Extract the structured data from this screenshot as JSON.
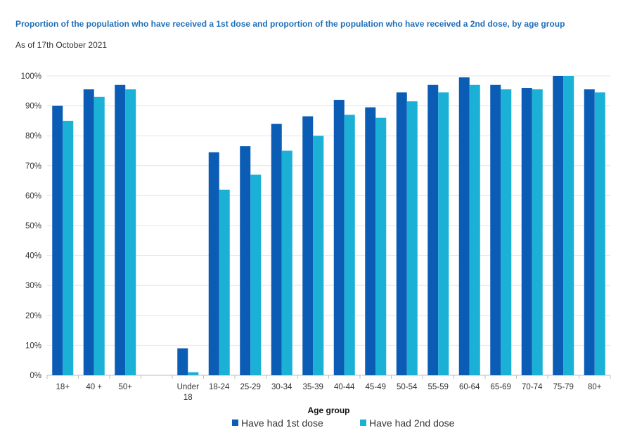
{
  "chart_data": {
    "type": "bar",
    "title": "Proportion of the population who have received a 1st dose and proportion of the population who have received a 2nd dose, by age group",
    "subtitle": "As of 17th October 2021",
    "xlabel": "Age group",
    "ylabel": "",
    "ylim": [
      0,
      100
    ],
    "yticks": [
      "0%",
      "10%",
      "20%",
      "30%",
      "40%",
      "50%",
      "60%",
      "70%",
      "80%",
      "90%",
      "100%"
    ],
    "categories": [
      "18+",
      "40 +",
      "50+",
      "",
      "Under 18",
      "18-24",
      "25-29",
      "30-34",
      "35-39",
      "40-44",
      "45-49",
      "50-54",
      "55-59",
      "60-64",
      "65-69",
      "70-74",
      "75-79",
      "80+"
    ],
    "series": [
      {
        "name": "Have had 1st dose",
        "color": "#0b5cb5",
        "values": [
          90,
          95.5,
          97,
          null,
          9,
          74.5,
          76.5,
          84,
          86.5,
          92,
          89.5,
          94.5,
          97,
          99.5,
          97,
          96,
          100,
          95.5
        ]
      },
      {
        "name": "Have had 2nd dose",
        "color": "#1bb0d6",
        "values": [
          85,
          93,
          95.5,
          null,
          1,
          62,
          67,
          75,
          80,
          87,
          86,
          91.5,
          94.5,
          97,
          95.5,
          95.5,
          100,
          94.5
        ]
      }
    ],
    "legend_position": "bottom",
    "grid": true
  }
}
